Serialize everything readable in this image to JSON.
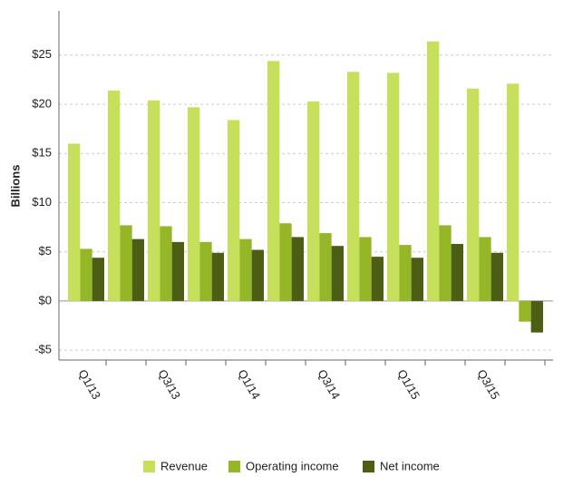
{
  "chart_data": {
    "type": "bar",
    "y_label": "Billions",
    "categories": [
      "Q1/13",
      null,
      "Q3/13",
      null,
      "Q1/14",
      null,
      "Q3/14",
      null,
      "Q1/15",
      null,
      "Q3/15",
      null
    ],
    "series": [
      {
        "name": "Revenue",
        "color": "#c6e05b",
        "values": [
          16.0,
          21.4,
          20.4,
          19.7,
          18.4,
          24.4,
          20.3,
          23.3,
          23.2,
          26.4,
          21.6,
          22.1
        ]
      },
      {
        "name": "Operating income",
        "color": "#94b627",
        "values": [
          5.3,
          7.7,
          7.6,
          6.0,
          6.3,
          7.9,
          6.9,
          6.5,
          5.7,
          7.7,
          6.5,
          -2.1
        ]
      },
      {
        "name": "Net income",
        "color": "#4b5e13",
        "values": [
          4.4,
          6.3,
          6.0,
          4.9,
          5.2,
          6.5,
          5.6,
          4.5,
          4.4,
          5.8,
          4.9,
          -3.2
        ]
      }
    ],
    "ylim": [
      -6,
      29.5
    ],
    "yticks": [
      {
        "value": -5,
        "label": "-$5"
      },
      {
        "value": 0,
        "label": "$0"
      },
      {
        "value": 5,
        "label": "$5"
      },
      {
        "value": 10,
        "label": "$10"
      },
      {
        "value": 15,
        "label": "$15"
      },
      {
        "value": 20,
        "label": "$20"
      },
      {
        "value": 25,
        "label": "$25"
      }
    ],
    "grid": true
  }
}
